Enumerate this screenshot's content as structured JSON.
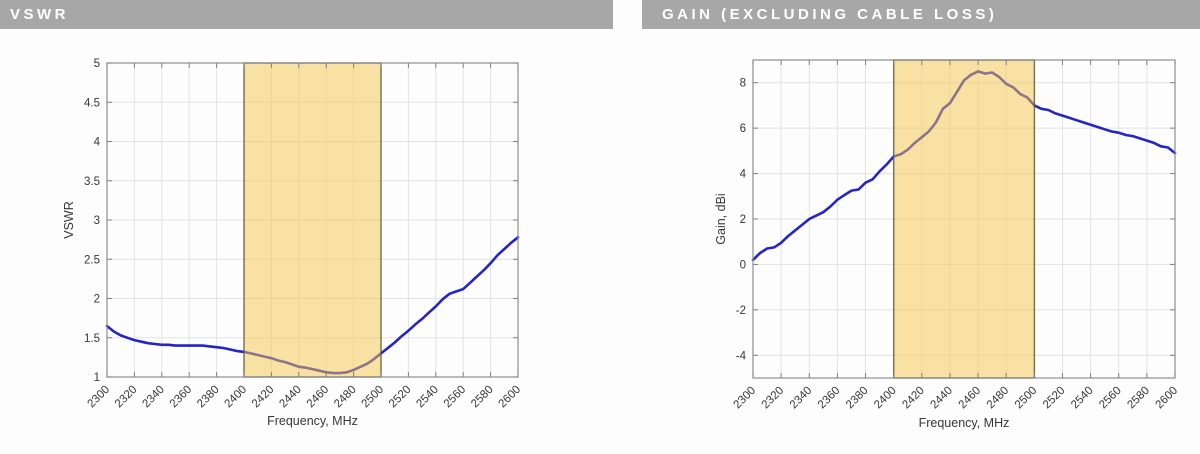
{
  "headers": [
    {
      "label": "VSWR"
    },
    {
      "label": "GAIN (EXCLUDING CABLE LOSS)"
    }
  ],
  "header_style": {
    "bg": "#a7a7a7",
    "text_color": "#ffffff"
  },
  "colors": {
    "curve_blue": "#2424c8",
    "band_fill": "#f5c64a",
    "band_border": "#5a5a40",
    "plot_border": "#8f8f8f",
    "grid": "#e3e3e3",
    "tick": "#808080"
  },
  "chart_data": [
    {
      "type": "line",
      "title": "VSWR",
      "xlabel": "Frequency, MHz",
      "ylabel": "VSWR",
      "xlim": [
        2300,
        2600
      ],
      "ylim": [
        1,
        5
      ],
      "xticks": [
        2300,
        2320,
        2340,
        2360,
        2380,
        2400,
        2420,
        2440,
        2460,
        2480,
        2500,
        2520,
        2540,
        2560,
        2580,
        2600
      ],
      "yticks": [
        1,
        1.5,
        2,
        2.5,
        3,
        3.5,
        4,
        4.5,
        5
      ],
      "grid": true,
      "legend": "none",
      "highlight_band": {
        "x0": 2400,
        "x1": 2500
      },
      "series": [
        {
          "name": "VSWR",
          "x": [
            2300,
            2305,
            2310,
            2315,
            2320,
            2325,
            2330,
            2335,
            2340,
            2345,
            2350,
            2355,
            2360,
            2365,
            2370,
            2375,
            2380,
            2385,
            2390,
            2395,
            2400,
            2405,
            2410,
            2415,
            2420,
            2425,
            2430,
            2435,
            2440,
            2445,
            2450,
            2455,
            2460,
            2465,
            2470,
            2475,
            2480,
            2485,
            2490,
            2495,
            2500,
            2505,
            2510,
            2515,
            2520,
            2525,
            2530,
            2535,
            2540,
            2545,
            2550,
            2555,
            2560,
            2565,
            2570,
            2575,
            2580,
            2585,
            2590,
            2595,
            2600
          ],
          "y": [
            1.65,
            1.58,
            1.53,
            1.5,
            1.47,
            1.45,
            1.43,
            1.42,
            1.41,
            1.41,
            1.4,
            1.4,
            1.4,
            1.4,
            1.4,
            1.39,
            1.38,
            1.37,
            1.35,
            1.33,
            1.32,
            1.3,
            1.28,
            1.26,
            1.24,
            1.21,
            1.19,
            1.16,
            1.13,
            1.12,
            1.1,
            1.08,
            1.06,
            1.05,
            1.05,
            1.06,
            1.09,
            1.13,
            1.17,
            1.23,
            1.3,
            1.37,
            1.44,
            1.52,
            1.59,
            1.67,
            1.74,
            1.82,
            1.9,
            1.99,
            2.06,
            2.09,
            2.12,
            2.2,
            2.28,
            2.36,
            2.45,
            2.55,
            2.63,
            2.71,
            2.78
          ]
        }
      ]
    },
    {
      "type": "line",
      "title": "GAIN (EXCLUDING CABLE LOSS)",
      "xlabel": "Frequency, MHz",
      "ylabel": "Gain, dBi",
      "xlim": [
        2300,
        2600
      ],
      "ylim": [
        -5,
        9
      ],
      "xticks": [
        2300,
        2320,
        2340,
        2360,
        2380,
        2400,
        2420,
        2440,
        2460,
        2480,
        2500,
        2520,
        2540,
        2560,
        2580,
        2600
      ],
      "yticks": [
        -4,
        -2,
        0,
        2,
        4,
        6,
        8
      ],
      "grid": true,
      "legend": "none",
      "highlight_band": {
        "x0": 2400,
        "x1": 2500
      },
      "series": [
        {
          "name": "Gain",
          "x": [
            2300,
            2305,
            2310,
            2315,
            2320,
            2325,
            2330,
            2335,
            2340,
            2345,
            2350,
            2355,
            2360,
            2365,
            2370,
            2375,
            2380,
            2385,
            2390,
            2395,
            2400,
            2405,
            2410,
            2415,
            2420,
            2425,
            2430,
            2435,
            2440,
            2445,
            2450,
            2455,
            2460,
            2465,
            2470,
            2475,
            2480,
            2485,
            2490,
            2495,
            2500,
            2505,
            2510,
            2515,
            2520,
            2525,
            2530,
            2535,
            2540,
            2545,
            2550,
            2555,
            2560,
            2565,
            2570,
            2575,
            2580,
            2585,
            2590,
            2595,
            2600
          ],
          "y": [
            0.2,
            0.5,
            0.7,
            0.75,
            0.95,
            1.25,
            1.5,
            1.75,
            2.0,
            2.15,
            2.3,
            2.55,
            2.85,
            3.05,
            3.25,
            3.3,
            3.6,
            3.75,
            4.1,
            4.4,
            4.75,
            4.85,
            5.05,
            5.35,
            5.6,
            5.85,
            6.25,
            6.85,
            7.1,
            7.6,
            8.1,
            8.35,
            8.5,
            8.4,
            8.45,
            8.25,
            7.95,
            7.8,
            7.5,
            7.35,
            7.0,
            6.85,
            6.8,
            6.65,
            6.55,
            6.45,
            6.35,
            6.25,
            6.15,
            6.05,
            5.95,
            5.85,
            5.8,
            5.7,
            5.65,
            5.55,
            5.45,
            5.35,
            5.2,
            5.15,
            4.9
          ]
        }
      ]
    }
  ]
}
